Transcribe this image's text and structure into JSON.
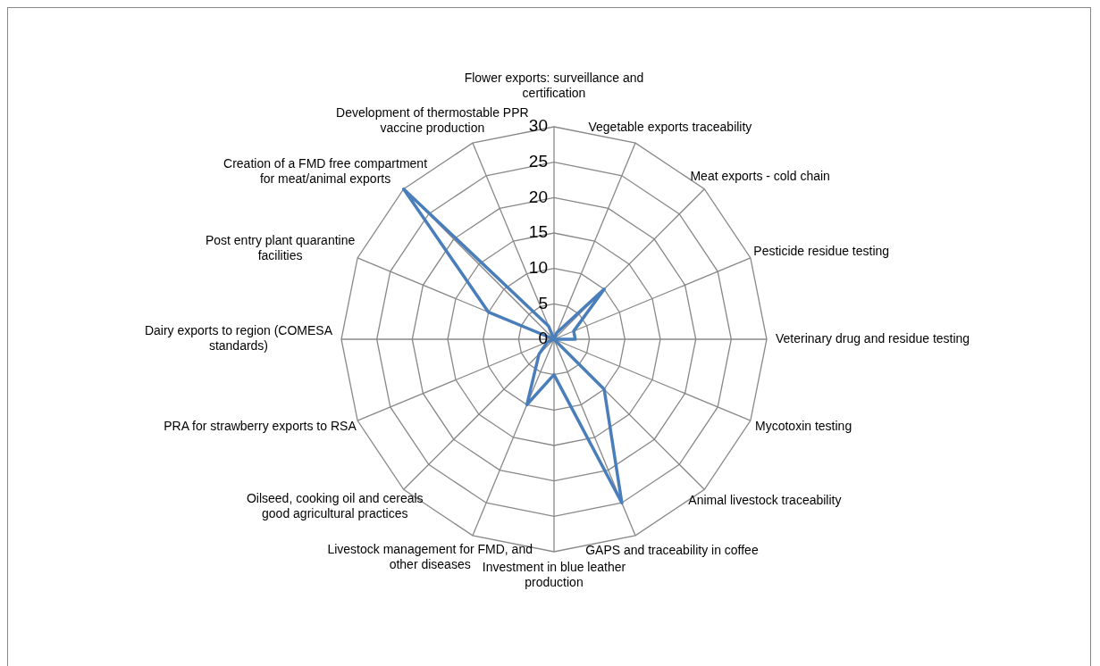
{
  "chart_data": {
    "type": "radar",
    "categories": [
      "Flower exports: surveillance and certification",
      "Vegetable exports traceability",
      "Meat exports - cold chain",
      "Pesticide residue testing",
      "Veterinary drug and residue testing",
      "Mycotoxin testing",
      "Animal livestock traceability",
      "GAPS and traceability in coffee",
      "Investment in blue leather production",
      "Livestock management for FMD, and other diseases",
      "Oilseed, cooking oil and cereals good agricultural practices",
      "PRA for strawberry exports to RSA",
      "Dairy exports to region (COMESA standards)",
      "Post entry plant quarantine facilities",
      "Creation of a FMD free compartment for meat/animal exports",
      "Development of thermostable PPR vaccine production"
    ],
    "series": [
      {
        "color": "#4a7ebb",
        "values": [
          0,
          1,
          10,
          3,
          3,
          0,
          10,
          25,
          5,
          10,
          3,
          1,
          0,
          10,
          30,
          2
        ]
      }
    ],
    "ylim": [
      0,
      30
    ],
    "yticks": [
      0,
      5,
      10,
      15,
      20,
      25,
      30
    ],
    "grid": true,
    "legend": false,
    "marker": "none"
  }
}
